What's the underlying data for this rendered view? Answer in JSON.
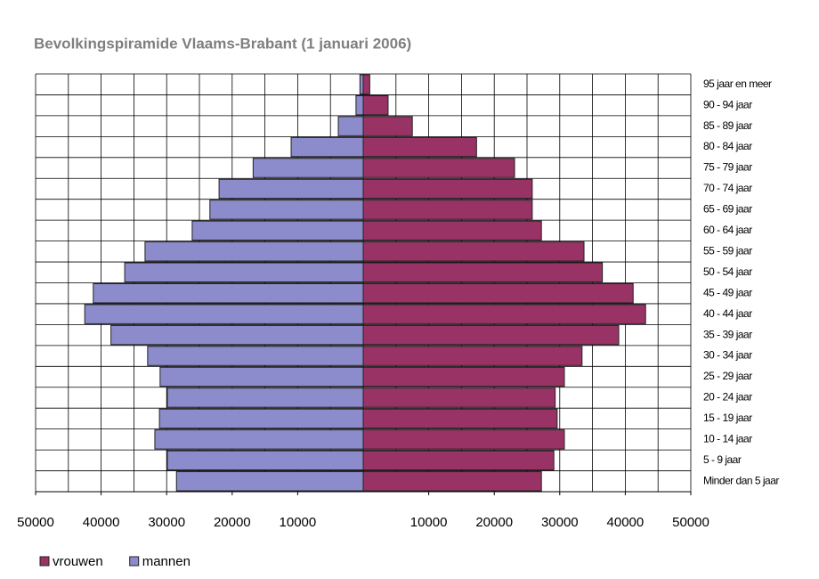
{
  "chart_data": {
    "type": "pyramid",
    "title": "Bevolkingspiramide Vlaams-Brabant (1 januari 2006)",
    "categories": [
      "Minder dan 5 jaar",
      "5 - 9 jaar",
      "10 - 14 jaar",
      "15 - 19 jaar",
      "20 - 24 jaar",
      "25 - 29 jaar",
      "30 - 34 jaar",
      "35 - 39 jaar",
      "40 - 44 jaar",
      "45 - 49 jaar",
      "50 - 54 jaar",
      "55 - 59 jaar",
      "60 - 64 jaar",
      "65 - 69 jaar",
      "70 - 74 jaar",
      "75 - 79 jaar",
      "80 - 84 jaar",
      "85 - 89 jaar",
      "90 - 94 jaar",
      "95 jaar en meer"
    ],
    "series": [
      {
        "name": "vrouwen",
        "color": "#993366",
        "side": "right",
        "values": [
          27200,
          29100,
          30700,
          29600,
          29300,
          30700,
          33400,
          39000,
          43100,
          41200,
          36500,
          33700,
          27200,
          25800,
          25800,
          23100,
          17300,
          7500,
          3800,
          1000
        ]
      },
      {
        "name": "mannen",
        "color": "#8c8ccc",
        "side": "left",
        "values": [
          28500,
          29900,
          31800,
          31100,
          29900,
          31000,
          32900,
          38500,
          42500,
          41200,
          36400,
          33300,
          26100,
          23400,
          22000,
          16800,
          11000,
          3800,
          1100,
          500
        ]
      }
    ],
    "xlim": [
      -50000,
      50000
    ],
    "xticks": [
      {
        "value": -50000,
        "label": "50000"
      },
      {
        "value": -40000,
        "label": "40000"
      },
      {
        "value": -30000,
        "label": "30000"
      },
      {
        "value": -20000,
        "label": "20000"
      },
      {
        "value": -10000,
        "label": "10000"
      },
      10000,
      20000,
      30000,
      40000,
      50000
    ],
    "xgrid": [
      -50000,
      -45000,
      -40000,
      -35000,
      -30000,
      -25000,
      -20000,
      -15000,
      -10000,
      -5000,
      0,
      5000,
      10000,
      15000,
      20000,
      25000,
      30000,
      35000,
      40000,
      45000,
      50000
    ],
    "legend": "bottom-left"
  }
}
